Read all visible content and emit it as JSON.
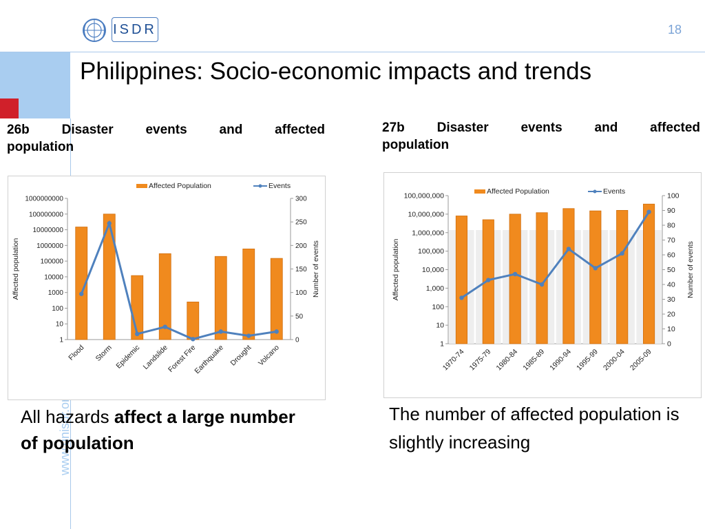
{
  "slide": {
    "logo_text": "ISDR",
    "page_number": "18",
    "title": "Philippines: Socio-economic impacts and trends",
    "side_url": "www.unisdr.org",
    "colors": {
      "accent_blue": "#a9cdf0",
      "accent_red": "#d0202a",
      "bar_orange": "#f08a1e",
      "line_blue": "#4f81bd"
    }
  },
  "headings": {
    "left_line1": [
      "26b",
      "Disaster",
      "events",
      "and",
      "affected"
    ],
    "left_line2": "population",
    "right_line1": [
      "27b",
      "Disaster",
      "events",
      "and",
      "affected"
    ],
    "right_line2": "population"
  },
  "captions": {
    "left_plain": "All hazards ",
    "left_bold": "affect a large number of population",
    "right": "The number of affected population is slightly increasing"
  },
  "chart_data": [
    {
      "type": "bar",
      "y_scale": "log",
      "categories": [
        "Flood",
        "Storm",
        "Epidemic",
        "Landslide",
        "Forest Fire",
        "Earthquake",
        "Drought",
        "Volcano"
      ],
      "series": [
        {
          "name": "Affected Population",
          "kind": "bar",
          "axis": "left",
          "values": [
            15000000,
            100000000,
            12000,
            300000,
            250,
            200000,
            600000,
            150000
          ]
        },
        {
          "name": "Events",
          "kind": "line",
          "axis": "right",
          "values": [
            97,
            247,
            12,
            27,
            1,
            17,
            8,
            17
          ]
        }
      ],
      "ylabel": "Affected population",
      "y2label": "Number of events",
      "ylim": [
        1,
        1000000000
      ],
      "y2lim": [
        0,
        300
      ],
      "yticks": [
        "1",
        "10",
        "100",
        "1000",
        "10000",
        "100000",
        "1000000",
        "10000000",
        "100000000",
        "1000000000"
      ],
      "y2ticks": [
        "0",
        "50",
        "100",
        "150",
        "200",
        "250",
        "300"
      ],
      "legend": "top",
      "grid": false
    },
    {
      "type": "bar",
      "y_scale": "log",
      "categories": [
        "1970-74",
        "1975-79",
        "1980-84",
        "1985-89",
        "1990-94",
        "1995-99",
        "2000-04",
        "2005-09"
      ],
      "series": [
        {
          "name": "Affected Population",
          "kind": "bar",
          "axis": "left",
          "values": [
            8000000,
            5000000,
            10000000,
            12000000,
            20000000,
            15000000,
            16000000,
            35000000
          ]
        },
        {
          "name": "Events",
          "kind": "line",
          "axis": "right",
          "values": [
            31,
            43,
            47,
            40,
            64,
            51,
            61,
            89
          ]
        }
      ],
      "ylabel": "Affected population",
      "y2label": "Number of events",
      "ylim": [
        1,
        100000000
      ],
      "y2lim": [
        0,
        100
      ],
      "yticks": [
        "1",
        "10",
        "100",
        "1,000",
        "10,000",
        "100,000",
        "1,000,000",
        "10,000,000",
        "100,000,000"
      ],
      "y2ticks": [
        "0",
        "10",
        "20",
        "30",
        "40",
        "50",
        "60",
        "70",
        "80",
        "90",
        "100"
      ],
      "legend": "top",
      "grid": false
    }
  ]
}
